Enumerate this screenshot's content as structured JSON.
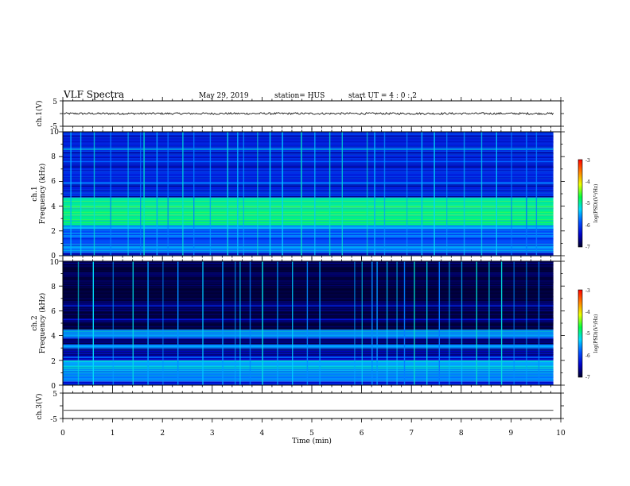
{
  "header": {
    "title": "VLF Spectra",
    "date": "May 29, 2019",
    "station": "station= HUS",
    "start": "start  UT =   4 : 0  : 2"
  },
  "colors": {
    "background": "#ffffff",
    "trace": "#000000",
    "colormap": [
      "#000028",
      "#0000c8",
      "#0050ff",
      "#00d8ff",
      "#00ff40",
      "#e8ff00",
      "#ff8000",
      "#ff0000",
      "#ffffff"
    ]
  },
  "chart_data": [
    {
      "type": "line",
      "ylabel": "ch.1(V)",
      "ylim": [
        -5,
        5
      ],
      "yticks": [
        "5",
        "-5"
      ],
      "xlim": [
        0,
        10
      ],
      "baseline": 0,
      "noise_amplitude": 0.4
    },
    {
      "type": "heatmap",
      "ylabel_lines": [
        "ch.1",
        "Frequency (kHz)"
      ],
      "ylim": [
        0,
        10
      ],
      "yticks": [
        "0",
        "2",
        "4",
        "6",
        "8",
        "10"
      ],
      "xlim": [
        0,
        10
      ],
      "data_extent_min": 9.85,
      "colorbar": {
        "ticks": [
          "-3",
          "-4",
          "-5",
          "-6",
          "-7"
        ],
        "label": "log(PSD)(V²/Hz)",
        "range": [
          -7,
          -3
        ]
      },
      "bands": [
        {
          "f0": 0.0,
          "f1": 0.25,
          "level": -6.3
        },
        {
          "f0": 0.25,
          "f1": 1.0,
          "level": -5.7
        },
        {
          "f0": 1.0,
          "f1": 2.2,
          "level": -5.9
        },
        {
          "f0": 2.2,
          "f1": 2.5,
          "level": -5.5
        },
        {
          "f0": 2.5,
          "f1": 4.0,
          "level": -4.9
        },
        {
          "f0": 4.0,
          "f1": 4.7,
          "level": -5.0
        },
        {
          "f0": 4.7,
          "f1": 10.0,
          "level": -6.2
        }
      ],
      "lines": [
        {
          "f": 8.6,
          "level": -5.4
        },
        {
          "f": 7.6,
          "level": -5.8
        },
        {
          "f": 5.9,
          "level": -5.7
        },
        {
          "f": 1.6,
          "level": -5.6
        },
        {
          "f": 0.65,
          "level": -5.5
        }
      ],
      "bursts": [
        0.15,
        0.35,
        0.62,
        0.95,
        1.3,
        1.55,
        1.62,
        1.88,
        2.1,
        2.4,
        2.62,
        2.95,
        3.3,
        3.5,
        3.62,
        3.9,
        4.15,
        4.4,
        4.78,
        5.05,
        5.35,
        5.6,
        6.1,
        6.25,
        6.45,
        6.9,
        7.2,
        7.45,
        7.7,
        8.05,
        8.4,
        8.7,
        9.0,
        9.3,
        9.5
      ]
    },
    {
      "type": "heatmap",
      "ylabel_lines": [
        "ch.2",
        "Frequency (kHz)"
      ],
      "ylim": [
        0,
        10
      ],
      "yticks": [
        "0",
        "2",
        "4",
        "6",
        "8",
        "10"
      ],
      "xlim": [
        0,
        10
      ],
      "data_extent_min": 9.85,
      "colorbar": {
        "ticks": [
          "-3",
          "-4",
          "-5",
          "-6",
          "-7"
        ],
        "label": "log(PSD)(V²/Hz)",
        "range": [
          -7,
          -3
        ]
      },
      "bands": [
        {
          "f0": 0.0,
          "f1": 0.3,
          "level": -6.3
        },
        {
          "f0": 0.3,
          "f1": 1.2,
          "level": -5.6
        },
        {
          "f0": 1.2,
          "f1": 2.0,
          "level": -5.4
        },
        {
          "f0": 2.0,
          "f1": 3.0,
          "level": -6.5
        },
        {
          "f0": 3.0,
          "f1": 3.3,
          "level": -5.5
        },
        {
          "f0": 3.3,
          "f1": 3.8,
          "level": -6.7
        },
        {
          "f0": 3.8,
          "f1": 4.5,
          "level": -5.6
        },
        {
          "f0": 4.5,
          "f1": 10.0,
          "level": -6.9
        }
      ],
      "lines": [
        {
          "f": 6.4,
          "level": -6.2
        },
        {
          "f": 5.3,
          "level": -6.3
        },
        {
          "f": 2.25,
          "level": -5.7
        }
      ],
      "bursts": [
        0.3,
        0.6,
        1.0,
        1.4,
        1.7,
        2.0,
        2.3,
        2.8,
        3.2,
        3.45,
        3.55,
        3.75,
        4.0,
        4.3,
        4.6,
        4.9,
        5.15,
        5.85,
        6.0,
        6.2,
        6.3,
        6.5,
        6.7,
        6.85,
        7.05,
        7.3,
        7.55,
        7.75,
        8.0,
        8.3,
        8.55,
        8.8,
        9.05,
        9.3,
        9.55
      ]
    },
    {
      "type": "line",
      "ylabel": "ch.3(V)",
      "ylim": [
        -5,
        5
      ],
      "yticks": [
        "5",
        "-5"
      ],
      "xlim": [
        0,
        10
      ],
      "baseline": -1.8,
      "noise_amplitude": 0,
      "xlabel": "Time  (min)",
      "xticks": [
        "0",
        "1",
        "2",
        "3",
        "4",
        "5",
        "6",
        "7",
        "8",
        "9",
        "10"
      ]
    }
  ]
}
